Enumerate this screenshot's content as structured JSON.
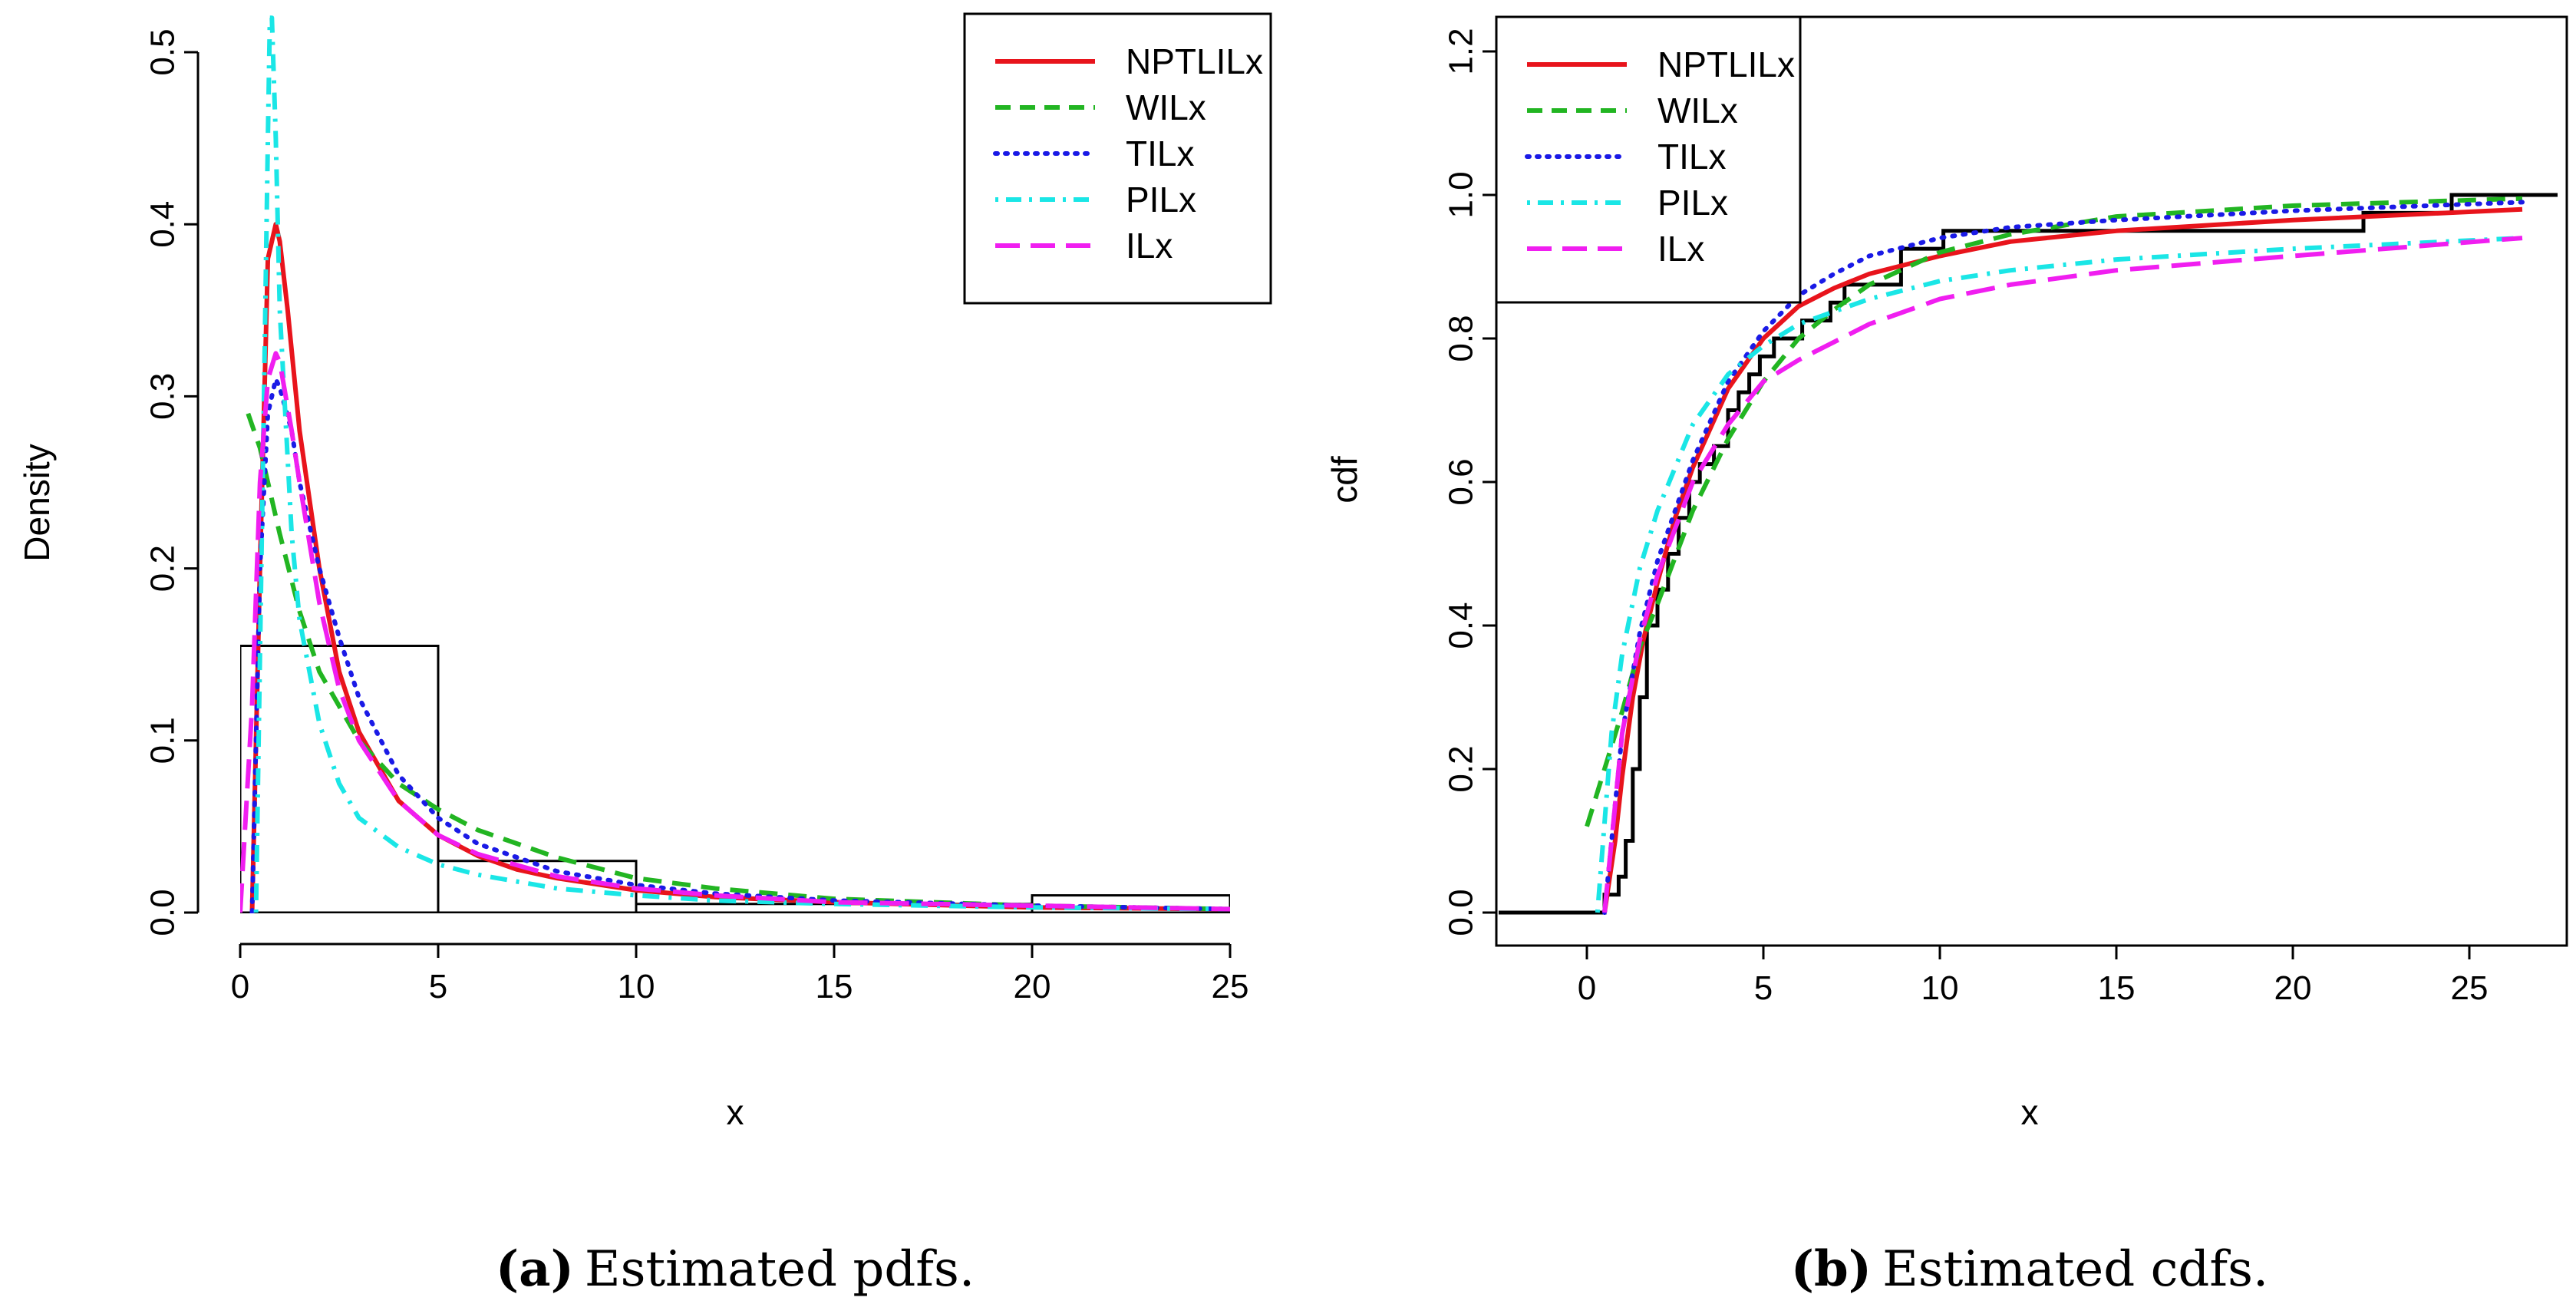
{
  "chart_data": [
    {
      "type": "line",
      "subtype": "histogram-with-density-curves",
      "title": "",
      "xlabel": "x",
      "ylabel": "Density",
      "xlim": [
        0,
        25
      ],
      "ylim": [
        0,
        0.5
      ],
      "xticks": [
        0,
        5,
        10,
        15,
        20,
        25
      ],
      "yticks": [
        0.0,
        0.1,
        0.2,
        0.3,
        0.4,
        0.5
      ],
      "xtick_labels": [
        "0",
        "5",
        "10",
        "15",
        "20",
        "25"
      ],
      "ytick_labels": [
        "0.0",
        "0.1",
        "0.2",
        "0.3",
        "0.4",
        "0.5"
      ],
      "histogram": {
        "bins": [
          [
            0,
            5
          ],
          [
            5,
            10
          ],
          [
            10,
            20
          ],
          [
            20,
            25
          ]
        ],
        "heights": [
          0.155,
          0.03,
          0.005,
          0.01
        ]
      },
      "legend_position": "top-right",
      "series": [
        {
          "name": "NPTLILx",
          "color": "#e8141c",
          "dash": "solid",
          "x": [
            0.3,
            0.5,
            0.7,
            0.9,
            1.0,
            1.2,
            1.5,
            2.0,
            2.5,
            3,
            4,
            5,
            6,
            7,
            8,
            10,
            12,
            15,
            20,
            25
          ],
          "y": [
            0.0,
            0.2,
            0.38,
            0.4,
            0.39,
            0.35,
            0.28,
            0.2,
            0.14,
            0.105,
            0.065,
            0.045,
            0.033,
            0.025,
            0.02,
            0.013,
            0.009,
            0.006,
            0.003,
            0.002
          ]
        },
        {
          "name": "WILx",
          "color": "#22b522",
          "dash": "dashed",
          "x": [
            0.2,
            0.5,
            0.8,
            1.0,
            1.5,
            2.0,
            3,
            4,
            5,
            6,
            8,
            10,
            12,
            15,
            20,
            25
          ],
          "y": [
            0.29,
            0.27,
            0.24,
            0.22,
            0.175,
            0.14,
            0.1,
            0.075,
            0.06,
            0.048,
            0.032,
            0.02,
            0.014,
            0.008,
            0.004,
            0.002
          ]
        },
        {
          "name": "TILx",
          "color": "#1a1ae6",
          "dash": "dotted",
          "x": [
            0.3,
            0.5,
            0.7,
            0.9,
            1.0,
            1.3,
            1.5,
            2.0,
            2.5,
            3,
            4,
            5,
            6,
            8,
            10,
            12,
            15,
            20,
            25
          ],
          "y": [
            0.0,
            0.2,
            0.29,
            0.31,
            0.305,
            0.28,
            0.25,
            0.2,
            0.16,
            0.125,
            0.08,
            0.055,
            0.04,
            0.024,
            0.016,
            0.011,
            0.007,
            0.004,
            0.002
          ]
        },
        {
          "name": "PILx",
          "color": "#1ae6e6",
          "dash": "dotdash",
          "x": [
            0.4,
            0.6,
            0.7,
            0.75,
            0.8,
            0.9,
            1.0,
            1.3,
            1.5,
            2.0,
            2.5,
            3,
            4,
            5,
            6,
            8,
            10,
            12,
            15,
            20,
            25
          ],
          "y": [
            0.0,
            0.3,
            0.45,
            0.52,
            0.52,
            0.45,
            0.35,
            0.22,
            0.17,
            0.11,
            0.075,
            0.055,
            0.038,
            0.028,
            0.022,
            0.014,
            0.01,
            0.007,
            0.005,
            0.003,
            0.002
          ]
        },
        {
          "name": "ILx",
          "color": "#f01ef0",
          "dash": "longdash",
          "x": [
            0.0,
            0.3,
            0.5,
            0.7,
            0.9,
            1.0,
            1.3,
            1.5,
            2.0,
            2.5,
            3,
            4,
            5,
            6,
            8,
            10,
            12,
            15,
            20,
            25
          ],
          "y": [
            0.0,
            0.12,
            0.25,
            0.31,
            0.325,
            0.32,
            0.28,
            0.25,
            0.18,
            0.13,
            0.1,
            0.065,
            0.045,
            0.034,
            0.021,
            0.014,
            0.01,
            0.006,
            0.004,
            0.002
          ]
        }
      ],
      "caption_label": "(a)",
      "caption_text": "Estimated pdfs."
    },
    {
      "type": "line",
      "subtype": "ecdf-with-fitted-cdfs",
      "title": "",
      "xlabel": "x",
      "ylabel": "cdf",
      "xlim": [
        -2.5,
        27.5
      ],
      "ylim": [
        -0.05,
        1.25
      ],
      "xticks": [
        0,
        5,
        10,
        15,
        20,
        25
      ],
      "yticks": [
        0.0,
        0.2,
        0.4,
        0.6,
        0.8,
        1.0,
        1.2
      ],
      "xtick_labels": [
        "0",
        "5",
        "10",
        "15",
        "20",
        "25"
      ],
      "ytick_labels": [
        "0.0",
        "0.2",
        "0.4",
        "0.6",
        "0.8",
        "1.0",
        "1.2"
      ],
      "legend_position": "top-left",
      "ecdf": {
        "name": "empirical",
        "color": "#000000",
        "steps_x": [
          -2.5,
          0.5,
          0.9,
          1.1,
          1.3,
          1.5,
          1.7,
          2.0,
          2.3,
          2.6,
          2.9,
          3.2,
          3.6,
          4.0,
          4.3,
          4.6,
          4.9,
          5.3,
          6.1,
          6.9,
          7.3,
          8.0,
          8.9,
          10.1,
          22.0,
          24.5,
          27.5
        ],
        "steps_y": [
          0.0,
          0.025,
          0.05,
          0.1,
          0.2,
          0.3,
          0.4,
          0.45,
          0.5,
          0.55,
          0.6,
          0.625,
          0.65,
          0.7,
          0.725,
          0.75,
          0.775,
          0.8,
          0.825,
          0.85,
          0.875,
          0.875,
          0.925,
          0.95,
          0.975,
          1.0,
          1.0
        ]
      },
      "series": [
        {
          "name": "NPTLILx",
          "color": "#e8141c",
          "dash": "solid",
          "x": [
            0.5,
            0.8,
            1.0,
            1.3,
            1.6,
            2,
            2.5,
            3,
            4,
            5,
            6,
            7,
            8,
            10,
            12,
            15,
            20,
            26.5
          ],
          "y": [
            0.0,
            0.1,
            0.19,
            0.3,
            0.38,
            0.46,
            0.55,
            0.62,
            0.73,
            0.8,
            0.845,
            0.87,
            0.89,
            0.915,
            0.935,
            0.95,
            0.965,
            0.98
          ]
        },
        {
          "name": "WILx",
          "color": "#22b522",
          "dash": "dashed",
          "x": [
            0.0,
            0.5,
            1.0,
            1.5,
            2,
            3,
            4,
            5,
            6,
            7,
            8,
            10,
            12,
            15,
            20,
            26.5
          ],
          "y": [
            0.12,
            0.2,
            0.28,
            0.37,
            0.43,
            0.56,
            0.66,
            0.74,
            0.8,
            0.84,
            0.875,
            0.92,
            0.945,
            0.97,
            0.985,
            0.995
          ]
        },
        {
          "name": "TILx",
          "color": "#1a1ae6",
          "dash": "dotted",
          "x": [
            0.5,
            1.0,
            1.5,
            2,
            3,
            4,
            5,
            6,
            7,
            8,
            10,
            12,
            15,
            20,
            26.5
          ],
          "y": [
            0.0,
            0.25,
            0.39,
            0.49,
            0.63,
            0.74,
            0.81,
            0.86,
            0.89,
            0.915,
            0.94,
            0.955,
            0.965,
            0.978,
            0.99
          ]
        },
        {
          "name": "PILx",
          "color": "#1ae6e6",
          "dash": "dotdash",
          "x": [
            0.3,
            0.7,
            1.0,
            1.5,
            2,
            3,
            4,
            5,
            6,
            8,
            10,
            12,
            15,
            20,
            26.5
          ],
          "y": [
            0.0,
            0.25,
            0.36,
            0.48,
            0.56,
            0.68,
            0.75,
            0.79,
            0.82,
            0.855,
            0.88,
            0.895,
            0.91,
            0.925,
            0.94
          ]
        },
        {
          "name": "ILx",
          "color": "#f01ef0",
          "dash": "longdash",
          "x": [
            0.5,
            1.0,
            1.5,
            2,
            3,
            4,
            5,
            6,
            8,
            10,
            12,
            15,
            20,
            26.5
          ],
          "y": [
            0.0,
            0.25,
            0.38,
            0.47,
            0.6,
            0.68,
            0.74,
            0.77,
            0.82,
            0.855,
            0.875,
            0.895,
            0.915,
            0.94
          ]
        }
      ],
      "caption_label": "(b)",
      "caption_text": "Estimated cdfs."
    }
  ]
}
